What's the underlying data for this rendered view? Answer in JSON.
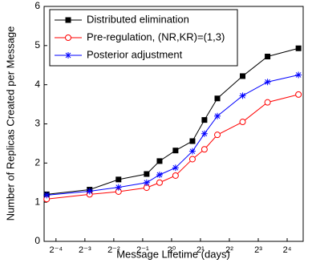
{
  "chart_data": {
    "type": "line",
    "xlabel": "Message Lifetime (days)",
    "ylabel": "Number of Replicas Created per Message",
    "xscale": "log2",
    "x": [
      0.05,
      0.14,
      0.28,
      0.55,
      0.75,
      1.1,
      1.65,
      2.2,
      3,
      5.5,
      10,
      21
    ],
    "series": [
      {
        "name": "Distributed elimination",
        "color": "#000000",
        "marker": "square",
        "values": [
          1.2,
          1.32,
          1.58,
          1.72,
          2.05,
          2.32,
          2.56,
          3.1,
          3.65,
          4.22,
          4.72,
          4.93
        ]
      },
      {
        "name": "Pre-regulation, (NR,KR)=(1,3)",
        "color": "#ff0000",
        "marker": "circle",
        "values": [
          1.08,
          1.2,
          1.27,
          1.37,
          1.5,
          1.68,
          2.1,
          2.35,
          2.72,
          3.05,
          3.55,
          3.75
        ]
      },
      {
        "name": "Posterior adjustment",
        "color": "#0000ff",
        "marker": "star",
        "values": [
          1.18,
          1.28,
          1.38,
          1.5,
          1.7,
          1.88,
          2.3,
          2.75,
          3.2,
          3.72,
          4.07,
          4.25
        ]
      }
    ],
    "xlim": [
      0.047,
      23.5
    ],
    "xticks": [
      {
        "value": 0.0625,
        "label": "2⁻⁴"
      },
      {
        "value": 0.125,
        "label": "2⁻³"
      },
      {
        "value": 0.25,
        "label": "2⁻²"
      },
      {
        "value": 0.5,
        "label": "2⁻¹"
      },
      {
        "value": 1,
        "label": "2⁰"
      },
      {
        "value": 2,
        "label": "2¹"
      },
      {
        "value": 4,
        "label": "2²"
      },
      {
        "value": 8,
        "label": "2³"
      },
      {
        "value": 16,
        "label": "2⁴"
      }
    ],
    "ylim": [
      0,
      6
    ],
    "yticks": [
      0,
      1,
      2,
      3,
      4,
      5,
      6
    ],
    "legend": "upper left",
    "grid": false
  }
}
